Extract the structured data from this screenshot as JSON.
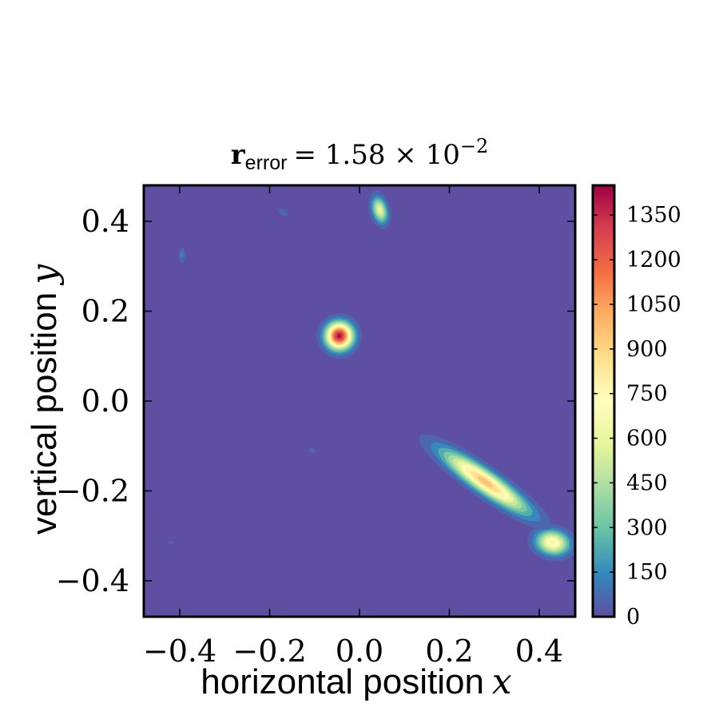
{
  "chart_data": {
    "type": "heatmap",
    "title": {
      "symbol": "r",
      "subscript": "error",
      "equals": "= 1.58 × 10",
      "exponent": "−2"
    },
    "xlabel": {
      "text": "horizontal position",
      "variable": "x"
    },
    "ylabel": {
      "text": "vertical position",
      "variable": "y"
    },
    "xlim": [
      -0.48,
      0.48
    ],
    "ylim": [
      -0.48,
      0.48
    ],
    "xticks": [
      {
        "value": -0.4,
        "label": "−0.4"
      },
      {
        "value": -0.2,
        "label": "−0.2"
      },
      {
        "value": 0.0,
        "label": "0.0"
      },
      {
        "value": 0.2,
        "label": "0.2"
      },
      {
        "value": 0.4,
        "label": "0.4"
      }
    ],
    "yticks": [
      {
        "value": -0.4,
        "label": "−0.4"
      },
      {
        "value": -0.2,
        "label": "−0.2"
      },
      {
        "value": 0.0,
        "label": "0.0"
      },
      {
        "value": 0.2,
        "label": "0.2"
      },
      {
        "value": 0.4,
        "label": "0.4"
      }
    ],
    "colorbar": {
      "range": [
        0,
        1450
      ],
      "colormap": "Spectral_r",
      "ticks": [
        {
          "value": 0,
          "label": "0"
        },
        {
          "value": 150,
          "label": "150"
        },
        {
          "value": 300,
          "label": "300"
        },
        {
          "value": 450,
          "label": "450"
        },
        {
          "value": 600,
          "label": "600"
        },
        {
          "value": 750,
          "label": "750"
        },
        {
          "value": 900,
          "label": "900"
        },
        {
          "value": 1050,
          "label": "1050"
        },
        {
          "value": 1200,
          "label": "1200"
        },
        {
          "value": 1350,
          "label": "1350"
        }
      ]
    },
    "blobs": [
      {
        "x": -0.045,
        "y": 0.145,
        "sx": 0.02,
        "sy": 0.02,
        "angle_deg": 0,
        "peak": 1450
      },
      {
        "x": 0.43,
        "y": -0.315,
        "sx": 0.025,
        "sy": 0.018,
        "angle_deg": -10,
        "peak": 800
      },
      {
        "x": 0.28,
        "y": -0.18,
        "sx": 0.075,
        "sy": 0.016,
        "angle_deg": -35,
        "peak": 1000
      },
      {
        "x": 0.045,
        "y": 0.425,
        "sx": 0.011,
        "sy": 0.02,
        "angle_deg": 15,
        "peak": 650
      },
      {
        "x": -0.395,
        "y": 0.325,
        "sx": 0.005,
        "sy": 0.012,
        "angle_deg": 0,
        "peak": 170
      },
      {
        "x": -0.17,
        "y": 0.42,
        "sx": 0.009,
        "sy": 0.005,
        "angle_deg": -30,
        "peak": 140
      },
      {
        "x": -0.105,
        "y": -0.11,
        "sx": 0.008,
        "sy": 0.005,
        "angle_deg": -30,
        "peak": 110
      },
      {
        "x": -0.42,
        "y": -0.315,
        "sx": 0.009,
        "sy": 0.004,
        "angle_deg": 0,
        "peak": 80
      }
    ],
    "colors": {
      "background": "#5e4fa2",
      "frame": "#000000"
    }
  }
}
